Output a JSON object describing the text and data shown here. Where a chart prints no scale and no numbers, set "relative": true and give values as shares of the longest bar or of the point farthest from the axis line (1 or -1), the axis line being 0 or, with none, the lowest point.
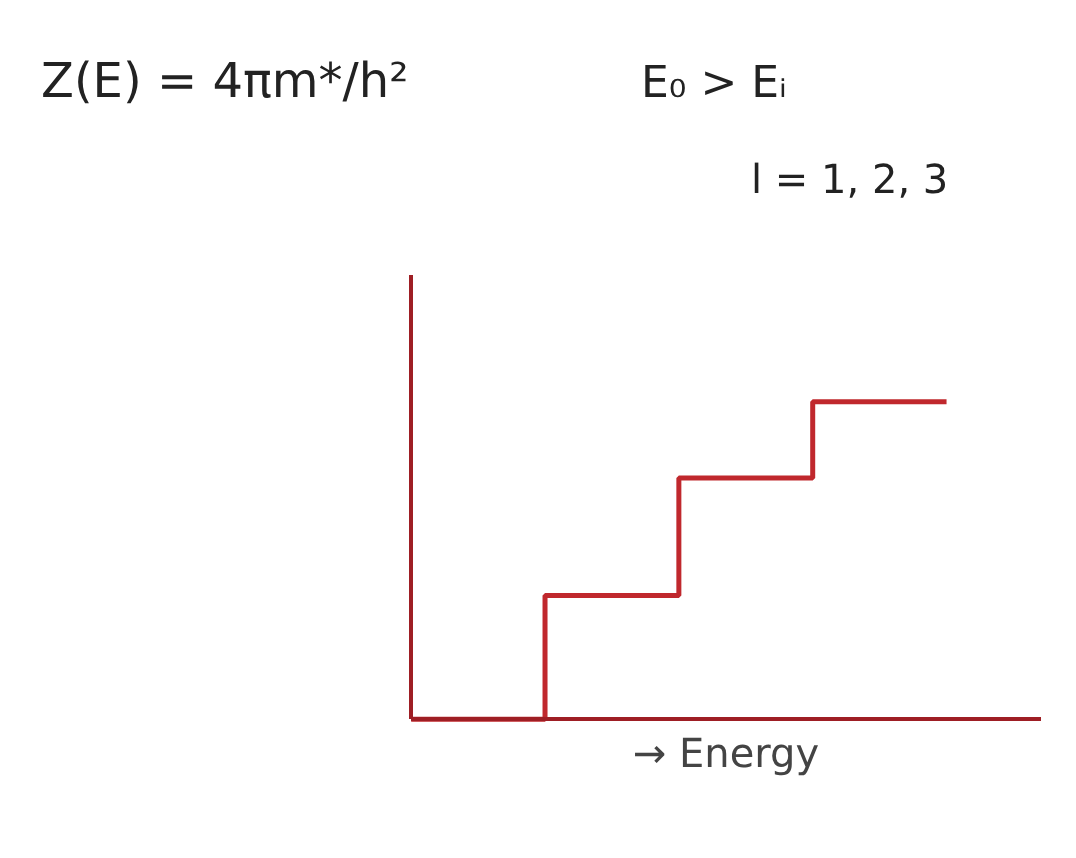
{
  "chart_data": {
    "type": "step",
    "relative": true,
    "categories": [
      null,
      null,
      null,
      null,
      null
    ],
    "series": [
      {
        "color": "#c0282d",
        "values": [
          0,
          0.39,
          0.76,
          1,
          1
        ]
      }
    ],
    "xlabel": "→ Energy",
    "annotations": [
      "Z(E) = 4πm*/h²",
      "E₀ > Eᵢ",
      "l = 1, 2, 3"
    ]
  }
}
